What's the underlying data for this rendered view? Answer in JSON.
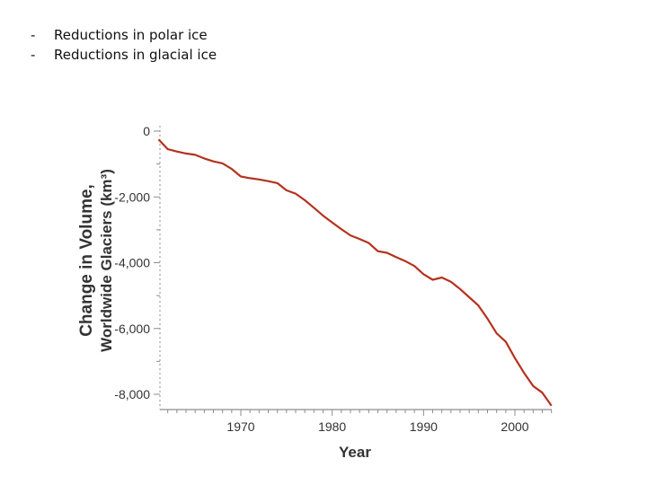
{
  "bullets": [
    {
      "dash": "-",
      "text": "Reductions in polar ice"
    },
    {
      "dash": "-",
      "text": "Reductions in glacial ice"
    }
  ],
  "colors": {
    "line": "#b5321e",
    "axis": "#8c8c8c",
    "text": "#333333"
  },
  "chart_data": {
    "type": "line",
    "xlabel": "Year",
    "ylabel_line1": "Change in Volume,",
    "ylabel_line2": "Worldwide Glaciers (km³)",
    "xlim": [
      1961,
      2004
    ],
    "ylim": [
      -8400,
      0
    ],
    "xticks": [
      {
        "value": 1970,
        "label": "1970"
      },
      {
        "value": 1980,
        "label": "1980"
      },
      {
        "value": 1990,
        "label": "1990"
      },
      {
        "value": 2000,
        "label": "2000"
      }
    ],
    "yticks": [
      {
        "value": 0,
        "label": "0"
      },
      {
        "value": -2000,
        "label": "-2,000"
      },
      {
        "value": -4000,
        "label": "-4,000"
      },
      {
        "value": -6000,
        "label": "-6,000"
      },
      {
        "value": -8000,
        "label": "-8,000"
      }
    ],
    "grid": false,
    "series": [
      {
        "x": [
          1961,
          1962,
          1963,
          1964,
          1965,
          1966,
          1967,
          1968,
          1969,
          1970,
          1971,
          1972,
          1973,
          1974,
          1975,
          1976,
          1977,
          1978,
          1979,
          1980,
          1981,
          1982,
          1983,
          1984,
          1985,
          1986,
          1987,
          1988,
          1989,
          1990,
          1991,
          1992,
          1993,
          1994,
          1995,
          1996,
          1997,
          1998,
          1999,
          2000,
          2001,
          2002,
          2003,
          2004
        ],
        "y": [
          -250,
          -550,
          -620,
          -680,
          -720,
          -830,
          -920,
          -980,
          -1150,
          -1380,
          -1430,
          -1470,
          -1520,
          -1580,
          -1800,
          -1900,
          -2100,
          -2330,
          -2570,
          -2780,
          -2980,
          -3170,
          -3280,
          -3400,
          -3650,
          -3700,
          -3830,
          -3950,
          -4100,
          -4350,
          -4520,
          -4450,
          -4580,
          -4800,
          -5050,
          -5300,
          -5700,
          -6150,
          -6400,
          -6900,
          -7350,
          -7750,
          -7950,
          -8350
        ]
      }
    ]
  }
}
